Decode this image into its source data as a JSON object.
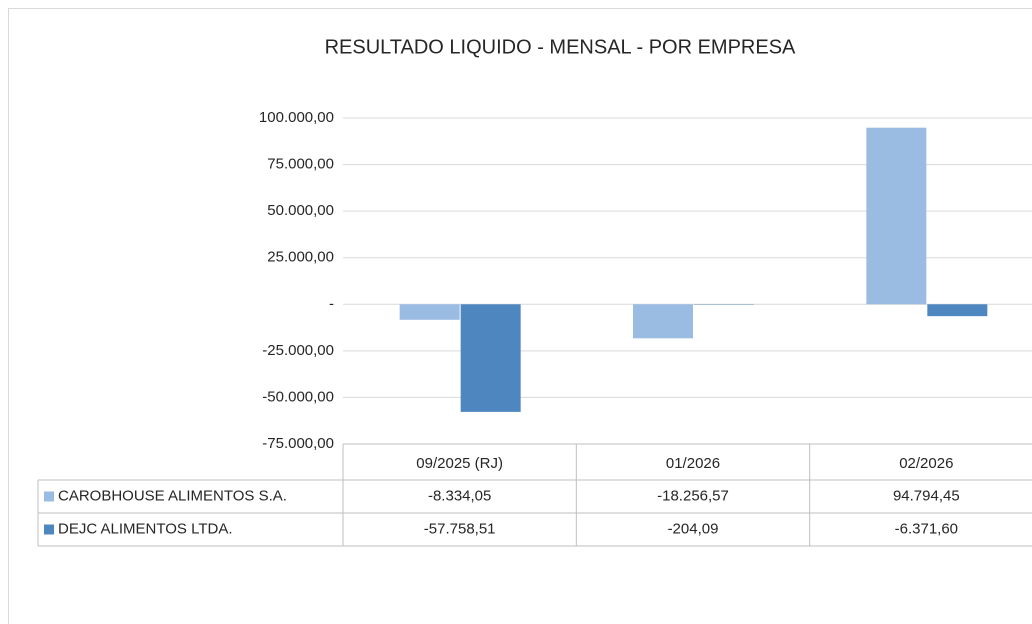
{
  "chart_data": {
    "type": "bar",
    "title": "RESULTADO LIQUIDO - MENSAL - POR EMPRESA",
    "categories": [
      "09/2025 (RJ)",
      "01/2026",
      "02/2026"
    ],
    "series": [
      {
        "name": "CAROBHOUSE ALIMENTOS S.A.",
        "color": "#9ABCE2",
        "values": [
          -8334.05,
          -18256.57,
          94794.45
        ],
        "value_labels": [
          "-8.334,05",
          "-18.256,57",
          "94.794,45"
        ]
      },
      {
        "name": "DEJC ALIMENTOS LTDA.",
        "color": "#4E86C0",
        "values": [
          -57758.51,
          -204.09,
          -6371.6
        ],
        "value_labels": [
          "-57.758,51",
          "-204,09",
          "-6.371,60"
        ]
      }
    ],
    "ylim": [
      -75000,
      100000
    ],
    "yticks": [
      {
        "value": -75000,
        "label": "-75.000,00"
      },
      {
        "value": -50000,
        "label": "-50.000,00"
      },
      {
        "value": -25000,
        "label": "-25.000,00"
      },
      {
        "value": 0,
        "label": "-"
      },
      {
        "value": 25000,
        "label": "25.000,00"
      },
      {
        "value": 50000,
        "label": "50.000,00"
      },
      {
        "value": 75000,
        "label": "75.000,00"
      },
      {
        "value": 100000,
        "label": "100.000,00"
      }
    ],
    "grid": true,
    "data_table": true
  }
}
